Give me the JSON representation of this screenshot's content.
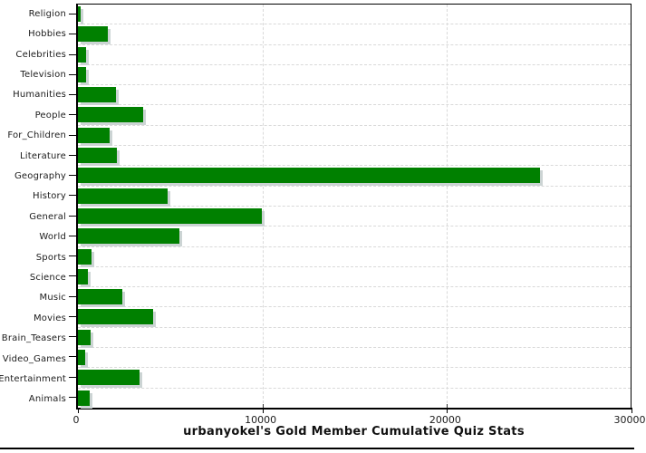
{
  "chart_data": {
    "type": "bar",
    "orientation": "horizontal",
    "title": "urbanyokel's Gold Member Cumulative Quiz Stats",
    "xlabel": "",
    "ylabel": "",
    "xlim": [
      0,
      30000
    ],
    "x_ticks": [
      0,
      10000,
      20000,
      30000
    ],
    "x_tick_labels": [
      "0",
      "10000",
      "20000",
      "30000"
    ],
    "grid": true,
    "legend": false,
    "bar_color": "#008000",
    "bar_shadow_color": "#ccd4d4",
    "gridline_color": "#d9d9d9",
    "categories": [
      "Religion",
      "Hobbies",
      "Celebrities",
      "Television",
      "Humanities",
      "People",
      "For_Children",
      "Literature",
      "Geography",
      "History",
      "General",
      "World",
      "Sports",
      "Science",
      "Music",
      "Movies",
      "Brain_Teasers",
      "Video_Games",
      "Entertainment",
      "Animals"
    ],
    "values": [
      150,
      1630,
      430,
      450,
      2090,
      3550,
      1730,
      2100,
      25100,
      4870,
      10000,
      5520,
      730,
      540,
      2420,
      4080,
      700,
      410,
      3320,
      650
    ]
  }
}
